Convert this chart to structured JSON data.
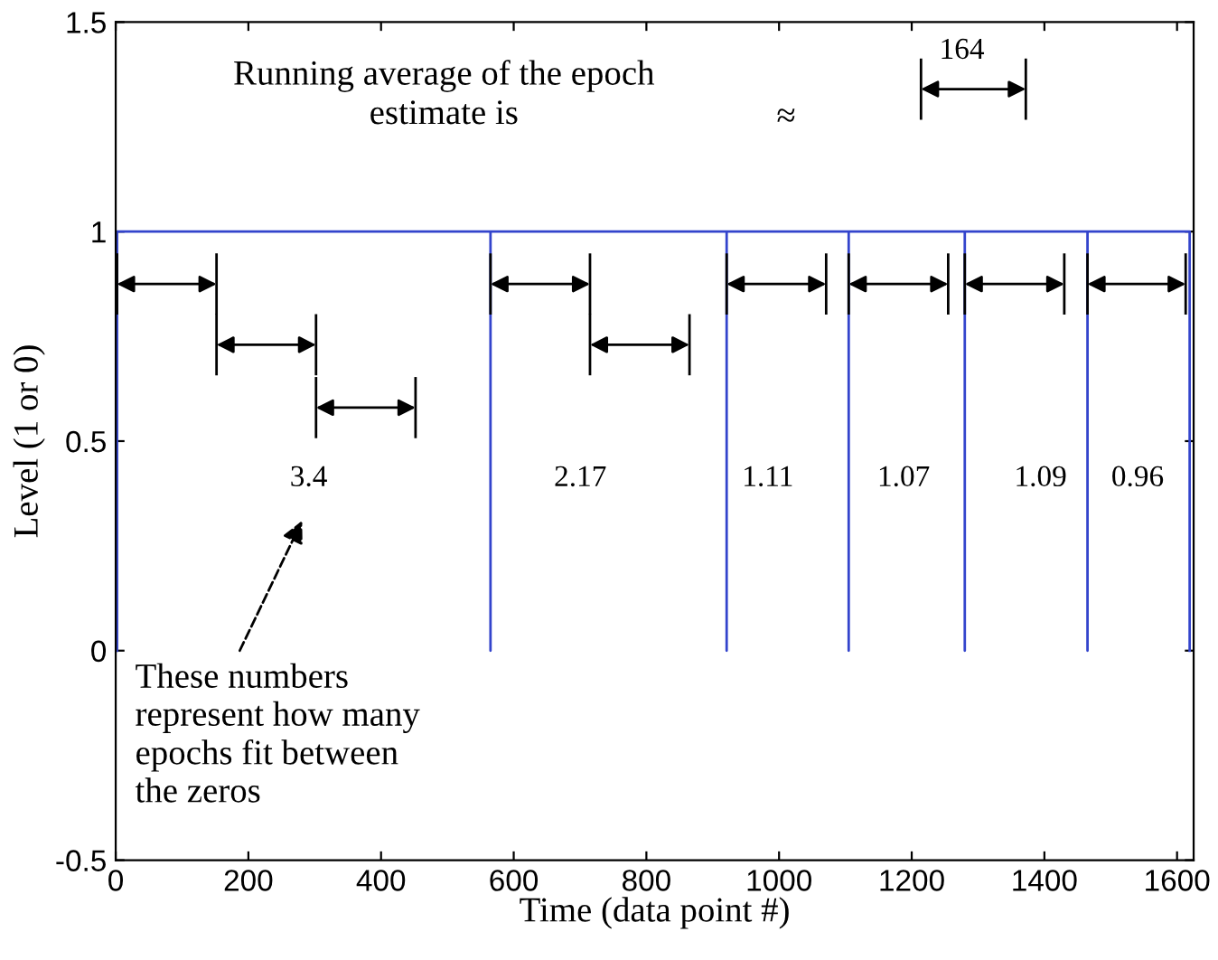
{
  "chart_data": {
    "type": "line",
    "xlabel": "Time (data point #)",
    "ylabel": "Level (1 or 0)",
    "x": [
      2,
      2,
      565,
      565,
      565,
      921,
      921,
      921,
      1105,
      1105,
      1105,
      1280,
      1280,
      1280,
      1465,
      1465,
      1465,
      1619,
      1619
    ],
    "series": [
      {
        "color": "#3344cc",
        "values": [
          0,
          1,
          1,
          0,
          1,
          1,
          0,
          1,
          1,
          0,
          1,
          1,
          0,
          1,
          1,
          0,
          1,
          1,
          0
        ]
      }
    ],
    "xlim": [
      0,
      1625
    ],
    "ylim": [
      -0.5,
      1.5
    ],
    "xticks": [
      0,
      200,
      400,
      600,
      800,
      1000,
      1200,
      1400,
      1600
    ],
    "yticks": [
      -0.5,
      0,
      0.5,
      1,
      1.5
    ],
    "grid": false,
    "legend": false,
    "annotations": [
      "3.4",
      "2.17",
      "1.11",
      "1.07",
      "1.09",
      "0.96",
      "Running average of the epoch\nestimate is",
      "≈",
      "164",
      "These numbers\nrepresent how many\nepochs fit between\nthe zeros"
    ]
  }
}
